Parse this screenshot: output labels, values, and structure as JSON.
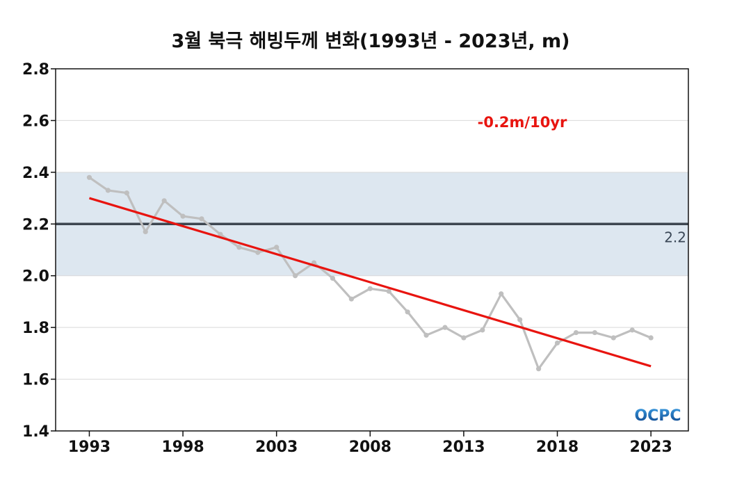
{
  "chart_data": {
    "type": "line",
    "title": "3월 북극 해빙두께 변화(1993년 - 2023년, m)",
    "xlabel": "",
    "ylabel": "",
    "xlim": [
      1991.2,
      2025.0
    ],
    "ylim": [
      1.4,
      2.8
    ],
    "y_ticks": [
      1.4,
      1.6,
      1.8,
      2.0,
      2.2,
      2.4,
      2.6,
      2.8
    ],
    "y_tick_labels": [
      "1.4",
      "1.6",
      "1.8",
      "2.0",
      "2.2",
      "2.4",
      "2.6",
      "2.8"
    ],
    "x_ticks": [
      1993,
      1998,
      2003,
      2008,
      2013,
      2018,
      2023
    ],
    "x_tick_labels": [
      "1993",
      "1998",
      "2003",
      "2008",
      "2013",
      "2018",
      "2023"
    ],
    "grid": true,
    "shaded_band": {
      "from": 2.0,
      "to": 2.4,
      "color": "#dde7f0"
    },
    "reference_line": {
      "value": 2.2,
      "label": "2.2",
      "color": "#3d4650"
    },
    "series": [
      {
        "color": "#bfbfbf",
        "x": [
          1993,
          1994,
          1995,
          1996,
          1997,
          1998,
          1999,
          2000,
          2001,
          2002,
          2003,
          2004,
          2005,
          2006,
          2007,
          2008,
          2009,
          2010,
          2011,
          2012,
          2013,
          2014,
          2015,
          2016,
          2017,
          2018,
          2019,
          2020,
          2021,
          2022,
          2023
        ],
        "y": [
          2.38,
          2.33,
          2.32,
          2.17,
          2.29,
          2.23,
          2.22,
          2.16,
          2.11,
          2.09,
          2.11,
          2.0,
          2.05,
          1.99,
          1.91,
          1.95,
          1.94,
          1.86,
          1.77,
          1.8,
          1.76,
          1.79,
          1.93,
          1.83,
          1.64,
          1.74,
          1.78,
          1.78,
          1.76,
          1.79,
          1.76
        ]
      }
    ],
    "trend": {
      "label": "-0.2m/10yr",
      "color": "#e8140f",
      "x": [
        1993,
        2023
      ],
      "y": [
        2.3,
        1.65
      ]
    },
    "logo": "OCPC"
  }
}
